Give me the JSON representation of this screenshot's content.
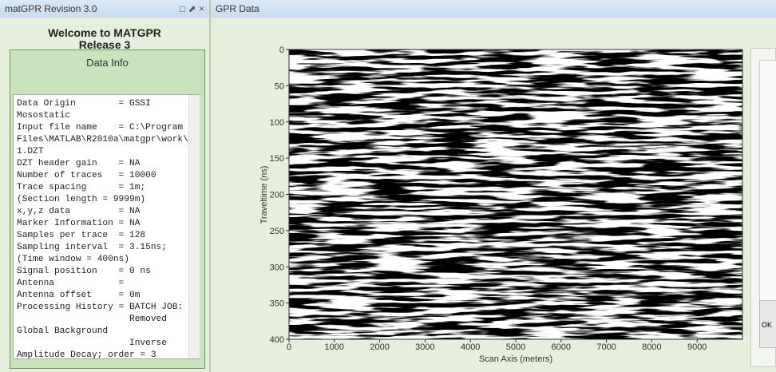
{
  "left_window": {
    "title": "matGPR Revision 3.0",
    "heading": "Welcome to MATGPR",
    "subheading": "Release 3",
    "panel_title": "Data Info",
    "info_lines": [
      "Data Origin        = GSSI",
      "Mosostatic",
      "Input file name    = C:\\Program",
      "Files\\MATLAB\\R2010a\\matgpr\\work\\",
      "1.DZT",
      "DZT header gain    = NA",
      "Number of traces   = 10000",
      "Trace spacing      = 1m;",
      "(Section length = 9999m)",
      "x,y,z data         = NA",
      "Marker Information = NA",
      "Samples per trace  = 128",
      "Sampling interval  = 3.15ns;",
      "(Time window = 400ns)",
      "Signal position    = 0 ns",
      "Antenna            =",
      "Antenna offset     = 0m",
      "Processing History = BATCH JOB:",
      "                     Removed",
      "Global Background",
      "                     Inverse",
      "Amplitude Decay; order = 3"
    ]
  },
  "right_window": {
    "title": "GPR Data",
    "ok_button": "OK",
    "chart_data": {
      "type": "radargram",
      "xlabel": "Scan Axis (meters)",
      "ylabel": "Traveltime (ns)",
      "xlim": [
        0,
        10000
      ],
      "ylim": [
        0,
        400
      ],
      "xticks": [
        0,
        1000,
        2000,
        3000,
        4000,
        5000,
        6000,
        7000,
        8000,
        9000
      ],
      "yticks": [
        0,
        50,
        100,
        150,
        200,
        250,
        300,
        350,
        400
      ],
      "y_inverted": true
    }
  }
}
